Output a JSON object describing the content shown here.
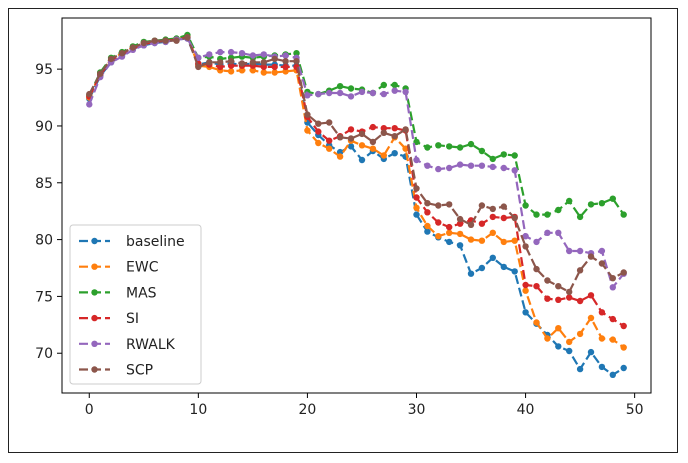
{
  "chart_data": {
    "type": "line",
    "title": "",
    "xlabel": "",
    "ylabel": "",
    "xlim": [
      -2.5,
      51.5
    ],
    "ylim": [
      66.5,
      99.5
    ],
    "xticks": [
      0,
      10,
      20,
      30,
      40,
      50
    ],
    "yticks": [
      70,
      75,
      80,
      85,
      90,
      95
    ],
    "grid": false,
    "legend_position": "lower-left",
    "line_style": "dashed",
    "marker": "circle",
    "x": [
      0,
      1,
      2,
      3,
      4,
      5,
      6,
      7,
      8,
      9,
      10,
      11,
      12,
      13,
      14,
      15,
      16,
      17,
      18,
      19,
      20,
      21,
      22,
      23,
      24,
      25,
      26,
      27,
      28,
      29,
      30,
      31,
      32,
      33,
      34,
      35,
      36,
      37,
      38,
      39,
      40,
      41,
      42,
      43,
      44,
      45,
      46,
      47,
      48,
      49
    ],
    "series": [
      {
        "name": "baseline",
        "color": "#1f77b4",
        "values": [
          92.4,
          94.4,
          95.6,
          96.2,
          96.8,
          97.1,
          97.3,
          97.4,
          97.6,
          97.7,
          95.4,
          95.6,
          95.4,
          95.5,
          95.4,
          95.5,
          95.4,
          95.4,
          95.3,
          95.3,
          90.3,
          89.2,
          88.3,
          87.7,
          88.2,
          87.0,
          87.8,
          87.1,
          87.6,
          87.3,
          82.2,
          80.7,
          80.2,
          79.8,
          79.5,
          77.0,
          77.5,
          78.4,
          77.6,
          77.2,
          73.6,
          72.6,
          71.6,
          70.6,
          70.2,
          68.6,
          70.1,
          68.8,
          68.1,
          68.7
        ]
      },
      {
        "name": "EWC",
        "color": "#ff7f0e",
        "values": [
          92.5,
          94.6,
          95.8,
          96.4,
          96.9,
          97.2,
          97.4,
          97.5,
          97.6,
          97.9,
          95.3,
          95.2,
          94.9,
          94.8,
          94.9,
          94.9,
          94.7,
          94.7,
          94.8,
          94.9,
          89.6,
          88.5,
          88.0,
          87.3,
          88.7,
          88.3,
          88.0,
          87.4,
          89.0,
          88.0,
          82.8,
          81.2,
          80.3,
          80.6,
          80.5,
          80.0,
          79.9,
          80.6,
          79.8,
          79.9,
          75.5,
          72.7,
          71.3,
          72.2,
          71.0,
          71.7,
          73.1,
          71.3,
          71.2,
          70.5
        ]
      },
      {
        "name": "MAS",
        "color": "#2ca02c",
        "values": [
          92.7,
          94.7,
          96.0,
          96.5,
          97.0,
          97.4,
          97.5,
          97.6,
          97.7,
          98.0,
          96.0,
          96.1,
          95.9,
          96.0,
          96.1,
          96.0,
          96.1,
          96.2,
          96.3,
          96.4,
          93.0,
          92.8,
          93.1,
          93.5,
          93.3,
          93.2,
          92.9,
          93.6,
          93.6,
          93.3,
          88.6,
          88.1,
          88.3,
          88.2,
          88.1,
          88.4,
          87.8,
          87.1,
          87.5,
          87.4,
          83.0,
          82.2,
          82.2,
          82.6,
          83.4,
          82.0,
          83.1,
          83.2,
          83.6,
          82.2
        ]
      },
      {
        "name": "SI",
        "color": "#d62728",
        "values": [
          92.6,
          94.5,
          95.7,
          96.3,
          96.8,
          97.2,
          97.4,
          97.5,
          97.6,
          97.8,
          95.5,
          95.4,
          95.2,
          95.3,
          95.3,
          95.3,
          95.2,
          95.2,
          95.2,
          95.2,
          90.8,
          89.5,
          88.7,
          89.1,
          89.7,
          89.5,
          89.9,
          89.8,
          89.8,
          89.6,
          83.7,
          82.4,
          81.5,
          81.1,
          81.4,
          81.7,
          81.4,
          82.0,
          81.9,
          82.0,
          76.0,
          75.9,
          74.8,
          74.7,
          74.9,
          74.6,
          75.1,
          73.6,
          73.0,
          72.4
        ]
      },
      {
        "name": "RWALK",
        "color": "#9467bd",
        "values": [
          91.9,
          94.3,
          95.6,
          96.1,
          96.7,
          97.1,
          97.3,
          97.4,
          97.6,
          97.7,
          96.0,
          96.3,
          96.5,
          96.5,
          96.4,
          96.2,
          96.3,
          96.1,
          96.2,
          96.0,
          92.7,
          92.8,
          92.9,
          92.9,
          92.6,
          93.0,
          92.9,
          92.8,
          93.1,
          93.0,
          87.0,
          86.5,
          86.2,
          86.3,
          86.6,
          86.5,
          86.5,
          86.4,
          86.3,
          86.1,
          80.3,
          79.8,
          80.6,
          80.6,
          79.0,
          79.0,
          78.8,
          79.0,
          75.8,
          77.0
        ]
      },
      {
        "name": "SCP",
        "color": "#8c564b",
        "values": [
          92.8,
          94.6,
          95.9,
          96.4,
          96.9,
          97.3,
          97.5,
          97.5,
          97.5,
          97.8,
          95.2,
          95.6,
          95.6,
          95.7,
          95.5,
          95.6,
          95.6,
          95.9,
          95.7,
          95.7,
          91.0,
          90.2,
          90.3,
          89.0,
          88.9,
          89.3,
          88.6,
          89.4,
          89.1,
          89.7,
          84.5,
          83.2,
          83.0,
          83.1,
          81.8,
          81.3,
          83.0,
          82.7,
          82.9,
          81.9,
          79.4,
          77.4,
          76.4,
          75.9,
          75.4,
          77.3,
          78.5,
          77.9,
          76.6,
          77.1
        ]
      }
    ]
  }
}
